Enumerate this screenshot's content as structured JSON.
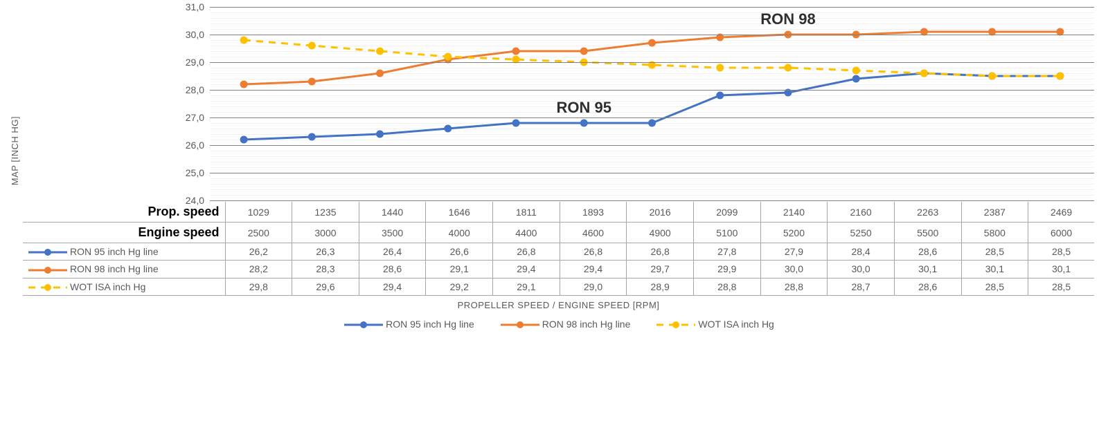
{
  "chart": {
    "type": "line",
    "y_axis": {
      "title": "MAP [INCH HG]",
      "min": 24.0,
      "max": 31.0,
      "tick_step": 1.0,
      "tick_labels": [
        "31,0",
        "30,0",
        "29,0",
        "28,0",
        "27,0",
        "26,0",
        "25,0",
        "24,0"
      ]
    },
    "x_axis": {
      "title": "PROPELLER SPEED / ENGINE SPEED [RPM]"
    },
    "categories_prop": [
      1029,
      1235,
      1440,
      1646,
      1811,
      1893,
      2016,
      2099,
      2140,
      2160,
      2263,
      2387,
      2469
    ],
    "categories_engine": [
      2500,
      3000,
      3500,
      4000,
      4400,
      4600,
      4900,
      5100,
      5200,
      5250,
      5500,
      5800,
      6000
    ],
    "row_headers": {
      "prop": "Prop. speed",
      "engine": "Engine speed"
    },
    "series": [
      {
        "key": "ron95",
        "label": "RON 95 inch Hg line",
        "color": "#4472c4",
        "dash": "",
        "marker": "circle",
        "values": [
          26.2,
          26.3,
          26.4,
          26.6,
          26.8,
          26.8,
          26.8,
          27.8,
          27.9,
          28.4,
          28.6,
          28.5,
          28.5
        ],
        "display": [
          "26,2",
          "26,3",
          "26,4",
          "26,6",
          "26,8",
          "26,8",
          "26,8",
          "27,8",
          "27,9",
          "28,4",
          "28,6",
          "28,5",
          "28,5"
        ]
      },
      {
        "key": "ron98",
        "label": "RON 98 inch Hg line",
        "color": "#ed7d31",
        "dash": "",
        "marker": "circle",
        "values": [
          28.2,
          28.3,
          28.6,
          29.1,
          29.4,
          29.4,
          29.7,
          29.9,
          30.0,
          30.0,
          30.1,
          30.1,
          30.1
        ],
        "display": [
          "28,2",
          "28,3",
          "28,6",
          "29,1",
          "29,4",
          "29,4",
          "29,7",
          "29,9",
          "30,0",
          "30,0",
          "30,1",
          "30,1",
          "30,1"
        ]
      },
      {
        "key": "wot",
        "label": "WOT ISA inch Hg",
        "color": "#ffc000",
        "dash": "10 8",
        "marker": "circle",
        "values": [
          29.8,
          29.6,
          29.4,
          29.2,
          29.1,
          29.0,
          28.9,
          28.8,
          28.8,
          28.7,
          28.6,
          28.5,
          28.5
        ],
        "display": [
          "29,8",
          "29,6",
          "29,4",
          "29,2",
          "29,1",
          "29,0",
          "28,9",
          "28,8",
          "28,8",
          "28,7",
          "28,6",
          "28,5",
          "28,5"
        ]
      }
    ],
    "annotations": [
      {
        "text": "RON 98",
        "x_index": 8.0,
        "y": 30.55,
        "fontsize": 22
      },
      {
        "text": "RON 95",
        "x_index": 5.0,
        "y": 27.35,
        "fontsize": 22
      }
    ],
    "line_width": 3,
    "marker_radius": 5.5,
    "grid_major_color": "#808080",
    "grid_minor_color": "#f0f0f0",
    "background_color": "#ffffff",
    "label_fontsize": 14
  }
}
